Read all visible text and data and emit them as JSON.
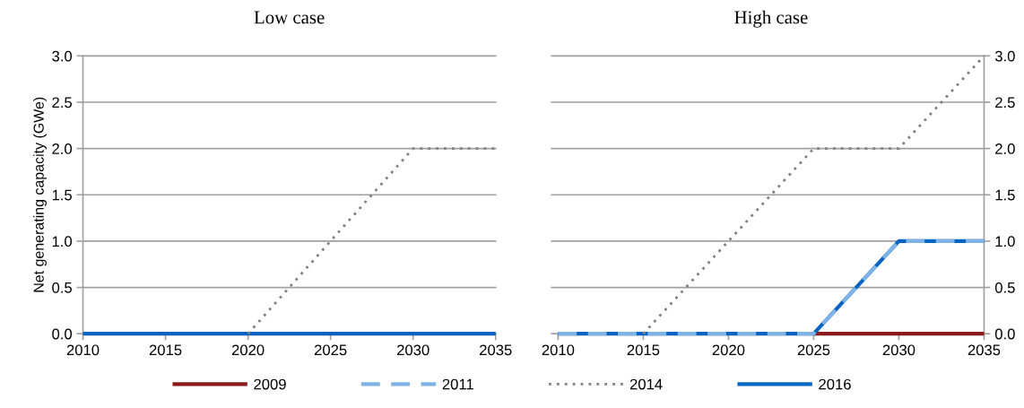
{
  "chart_data": [
    {
      "type": "line",
      "title": "Low case",
      "ylabel": "Net generating capacity (GWe)",
      "x": [
        2010,
        2015,
        2020,
        2025,
        2030,
        2035
      ],
      "xlim": [
        2010,
        2035
      ],
      "xticks": [
        2010,
        2015,
        2020,
        2025,
        2030,
        2035
      ],
      "ylim": [
        0,
        3
      ],
      "yticks": [
        {
          "value": 0,
          "label": "0.0"
        },
        {
          "value": 0.5,
          "label": "0.5"
        },
        {
          "value": 1,
          "label": "1.0"
        },
        {
          "value": 1.5,
          "label": "1.5"
        },
        {
          "value": 2,
          "label": "2.0"
        },
        {
          "value": 2.5,
          "label": "2.5"
        },
        {
          "value": 3,
          "label": "3.0"
        }
      ],
      "grid": "y",
      "legend": false,
      "series": [
        {
          "color": "#0563c1",
          "line_style": "solid",
          "values": [
            0,
            0,
            0,
            0,
            0,
            0
          ]
        },
        {
          "color": "#808080",
          "line_style": "dotted",
          "values": [
            null,
            null,
            0,
            1,
            2,
            2
          ]
        }
      ]
    },
    {
      "type": "line",
      "title": "High case",
      "x": [
        2010,
        2015,
        2020,
        2025,
        2030,
        2035
      ],
      "xlim": [
        2010,
        2035
      ],
      "xticks": [
        2010,
        2015,
        2020,
        2025,
        2030,
        2035
      ],
      "y2lim": [
        0,
        3
      ],
      "y2ticks": [
        {
          "value": 0,
          "label": "0.0"
        },
        {
          "value": 0.5,
          "label": "0.5"
        },
        {
          "value": 1,
          "label": "1.0"
        },
        {
          "value": 1.5,
          "label": "1.5"
        },
        {
          "value": 2,
          "label": "2.0"
        },
        {
          "value": 2.5,
          "label": "2.5"
        },
        {
          "value": 3,
          "label": "3.0"
        }
      ],
      "grid": "y",
      "legend": "bottom",
      "series": [
        {
          "name": "2009",
          "color": "#8b1a1a",
          "line_style": "solid",
          "axis": "y2",
          "values": [
            null,
            null,
            null,
            0,
            0,
            0
          ]
        },
        {
          "name": "2011",
          "color": "#7fb2e5",
          "line_style": "dashed",
          "axis": "y2",
          "values": [
            0,
            0,
            0,
            0,
            1,
            1
          ]
        },
        {
          "name": "2014",
          "color": "#808080",
          "line_style": "dotted",
          "axis": "y2",
          "values": [
            null,
            0,
            1,
            2,
            2,
            3
          ]
        },
        {
          "name": "2016",
          "color": "#0563c1",
          "line_style": "solid",
          "axis": "y2",
          "values": [
            0,
            0,
            0,
            0,
            1,
            1
          ]
        }
      ]
    }
  ]
}
